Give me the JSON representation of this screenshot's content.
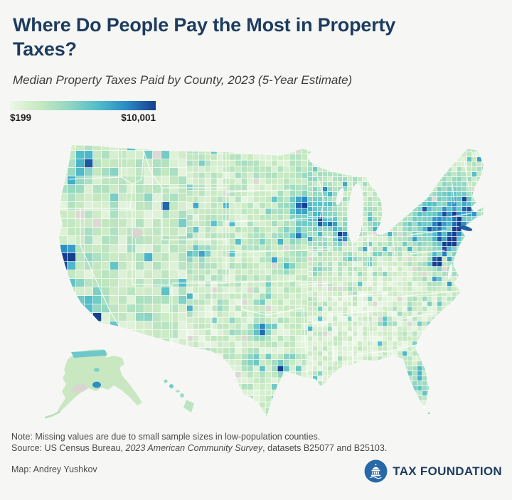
{
  "header": {
    "title": "Where Do People Pay the Most in Property Taxes?",
    "subtitle": "Median Property Taxes Paid by County, 2023 (5-Year Estimate)"
  },
  "legend": {
    "min_label": "$199",
    "max_label": "$10,001",
    "gradient_stops": [
      "#ecf7e6",
      "#c8e9c1",
      "#93d7c2",
      "#52bec9",
      "#2a8ac5",
      "#173f8f"
    ],
    "missing_color": "#ded8d4"
  },
  "map": {
    "kind": "us-county-choropleth"
  },
  "footer": {
    "note": "Note: Missing values are due to small sample sizes in low-population counties.",
    "source_prefix": "Source: US Census Bureau, ",
    "source_italic": "2023 American Community Survey",
    "source_suffix": ", datasets B25077 and B25103.",
    "credit": "Map: Andrey Yushkov",
    "logo_text": "TAX FOUNDATION"
  }
}
